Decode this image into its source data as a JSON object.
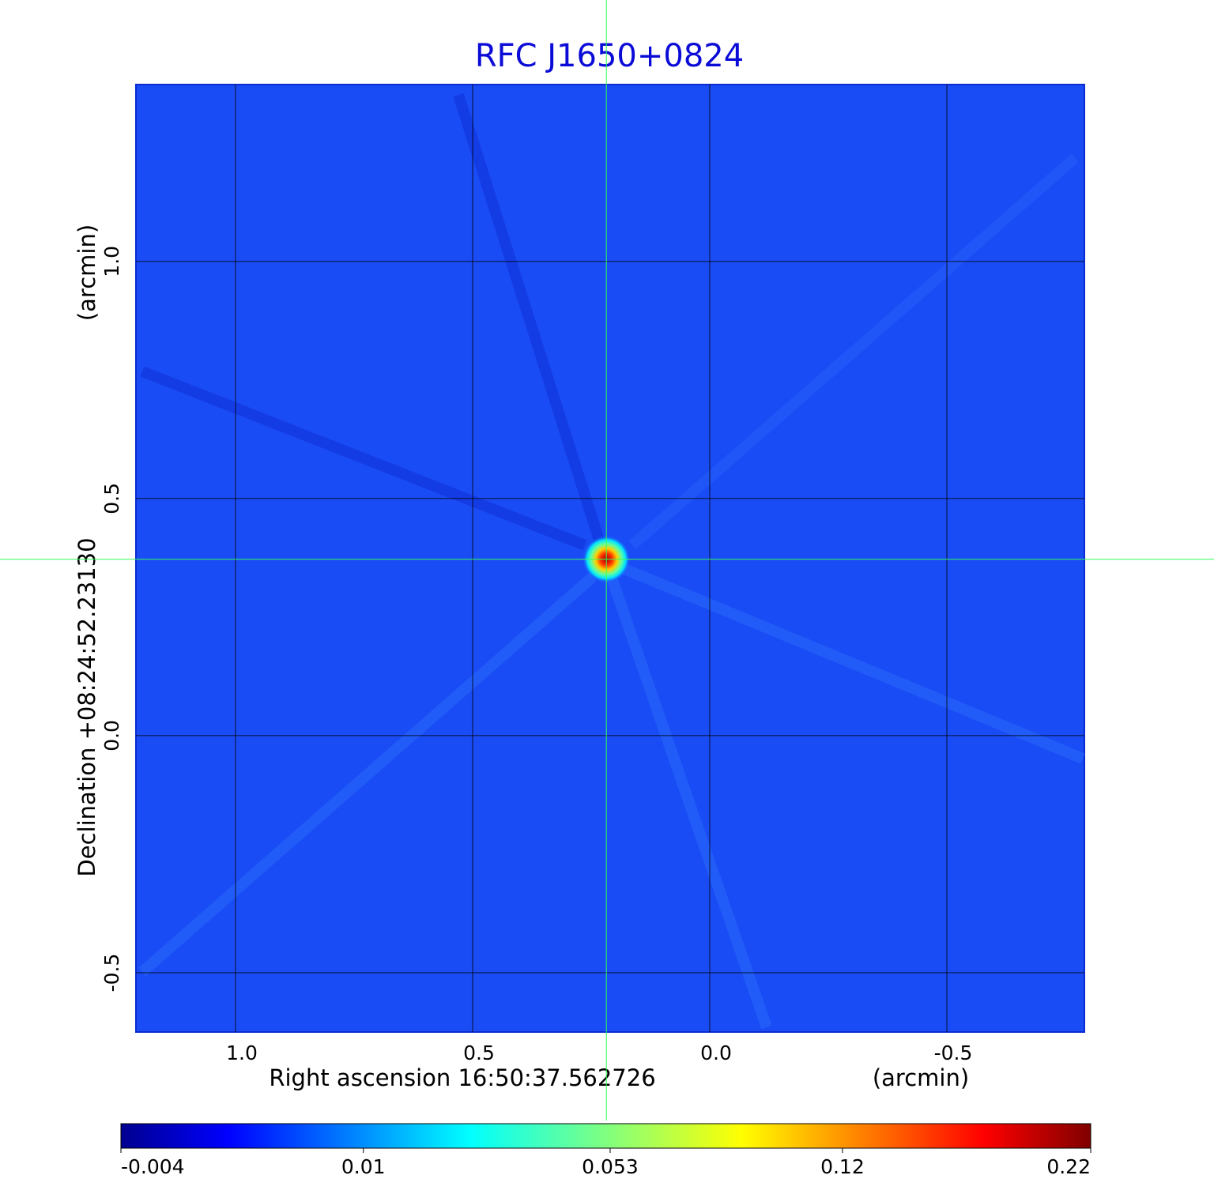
{
  "chart_data": {
    "type": "image",
    "title": "RFC J1650+0824",
    "x_label": "Right ascension  16:50:37.562726",
    "x_units": "(arcmin)",
    "y_label": "Declination  +08:24:52.23130",
    "y_units": "(arcmin)",
    "xlim": [
      1.21,
      -0.79
    ],
    "ylim": [
      -0.625,
      1.373
    ],
    "xticks": [
      {
        "value": 1,
        "label": "1.0"
      },
      {
        "value": 0.5,
        "label": "0.5"
      },
      {
        "value": 0,
        "label": "0.0"
      },
      {
        "value": -0.5,
        "label": "-0.5"
      }
    ],
    "yticks": [
      {
        "value": 1,
        "label": "1.0"
      },
      {
        "value": 0.5,
        "label": "0.5"
      },
      {
        "value": 0,
        "label": "0.0"
      },
      {
        "value": -0.5,
        "label": "-0.5"
      }
    ],
    "grid": true,
    "source": {
      "x": 0.218,
      "y": 0.372,
      "peak": 0.22
    },
    "colorbar": {
      "scale": "sqrt",
      "clim": [
        -0.004,
        0.22
      ],
      "ticks": [
        -0.004,
        0.01,
        0.053,
        0.12,
        0.22
      ]
    }
  }
}
